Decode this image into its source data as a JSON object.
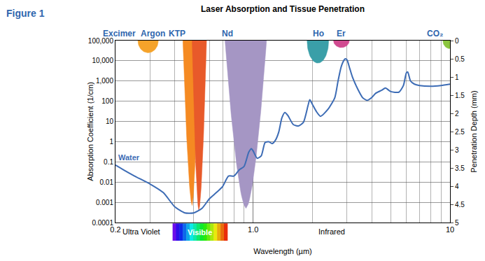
{
  "chart_data": {
    "type": "line",
    "title": "Laser Absorption and Tissue Penetration",
    "figure_label": "Figure 1",
    "x_label": "Wavelength (µm)",
    "y_label": "Absorption Coefficient (1/cm)",
    "y2_label": "Penetration Depth (mm)",
    "log": true,
    "grid": true,
    "xlim": [
      0.2,
      10
    ],
    "xticks": [
      0.2,
      {
        "value": 1,
        "label": "1.0"
      },
      10
    ],
    "ylim": [
      0.0001,
      100000
    ],
    "yticks": [
      0.0001,
      0.001,
      0.01,
      0.1,
      1,
      10,
      100,
      {
        "value": 1000,
        "label": "1,000"
      },
      {
        "value": 10000,
        "label": "10,000"
      },
      {
        "value": 100000,
        "label": "100,000"
      }
    ],
    "y2lim": [
      5,
      0
    ],
    "y2ticks": [
      0,
      0.5,
      1,
      1.5,
      2,
      2.5,
      3,
      3.5,
      4,
      4.5,
      5
    ],
    "series": [
      {
        "name": "Water",
        "color": "#3d6cb5",
        "x": [
          0.2,
          0.22,
          0.25,
          0.3,
          0.35,
          0.4,
          0.45,
          0.5,
          0.55,
          0.6,
          0.65,
          0.7,
          0.75,
          0.8,
          0.85,
          0.9,
          0.95,
          0.98,
          1.0,
          1.05,
          1.1,
          1.15,
          1.2,
          1.25,
          1.3,
          1.35,
          1.4,
          1.45,
          1.5,
          1.6,
          1.7,
          1.8,
          1.9,
          1.94,
          2.0,
          2.1,
          2.2,
          2.4,
          2.6,
          2.7,
          2.8,
          2.9,
          2.94,
          3.0,
          3.1,
          3.2,
          3.4,
          3.6,
          3.8,
          4.0,
          4.2,
          4.5,
          4.7,
          5.0,
          5.5,
          5.8,
          6.0,
          6.1,
          6.3,
          6.6,
          7.0,
          8.0,
          9.0,
          10.0
        ],
        "values": [
          0.07,
          0.04,
          0.02,
          0.008,
          0.003,
          0.0006,
          0.0003,
          0.0003,
          0.0005,
          0.0015,
          0.003,
          0.006,
          0.02,
          0.02,
          0.04,
          0.06,
          0.3,
          0.45,
          0.35,
          0.15,
          0.2,
          0.9,
          1.0,
          0.8,
          1.2,
          3,
          15,
          28,
          20,
          7,
          6,
          9,
          60,
          120,
          70,
          30,
          18,
          40,
          150,
          1000,
          5000,
          11000,
          12500,
          11000,
          4000,
          1500,
          400,
          150,
          110,
          150,
          250,
          350,
          450,
          300,
          280,
          600,
          2500,
          2800,
          1000,
          700,
          600,
          550,
          600,
          700
        ]
      }
    ],
    "lasers": [
      {
        "name": "Excimer",
        "color": "#f5a32a",
        "marker": "drop",
        "x": [
          0.26,
          0.33
        ],
        "bottom": [
          0.293,
          25000
        ],
        "label_x": 0.21
      },
      {
        "name": "Argon",
        "color": "#f58a22",
        "marker": "cone",
        "x": [
          0.44,
          0.53
        ],
        "bottom": [
          0.49,
          0.0007
        ],
        "label_x": 0.31
      },
      {
        "name": "KTP",
        "color": "#e85a2a",
        "marker": "cone",
        "x": [
          0.49,
          0.58
        ],
        "bottom": [
          0.53,
          0.0004
        ],
        "label_x": 0.41
      },
      {
        "name": "Nd",
        "color": "#a596c4",
        "marker": "cone",
        "x": [
          0.72,
          1.17
        ],
        "bottom": [
          0.92,
          0.0005
        ],
        "label_x": 0.74
      },
      {
        "name": "Ho",
        "color": "#3a9fa8",
        "marker": "drop",
        "x": [
          1.88,
          2.42
        ],
        "bottom": [
          2.13,
          7700
        ],
        "label_x": 2.15
      },
      {
        "name": "Er",
        "color": "#d04a90",
        "marker": "drop",
        "x": [
          2.56,
          3.08
        ],
        "bottom": [
          2.81,
          45000
        ],
        "label_x": 2.8
      },
      {
        "name": "CO₂",
        "color": "#8cc63f",
        "marker": "drop",
        "x": [
          9.2,
          10.8
        ],
        "bottom": [
          9.97,
          40000
        ],
        "label_x": 8.4
      }
    ],
    "regions": [
      {
        "text": "Ultra Violet",
        "x": 0.27
      },
      {
        "text": "Visible",
        "x": [
          0.39,
          0.74
        ]
      },
      {
        "text": "Infrared",
        "x": 2.5
      }
    ]
  }
}
